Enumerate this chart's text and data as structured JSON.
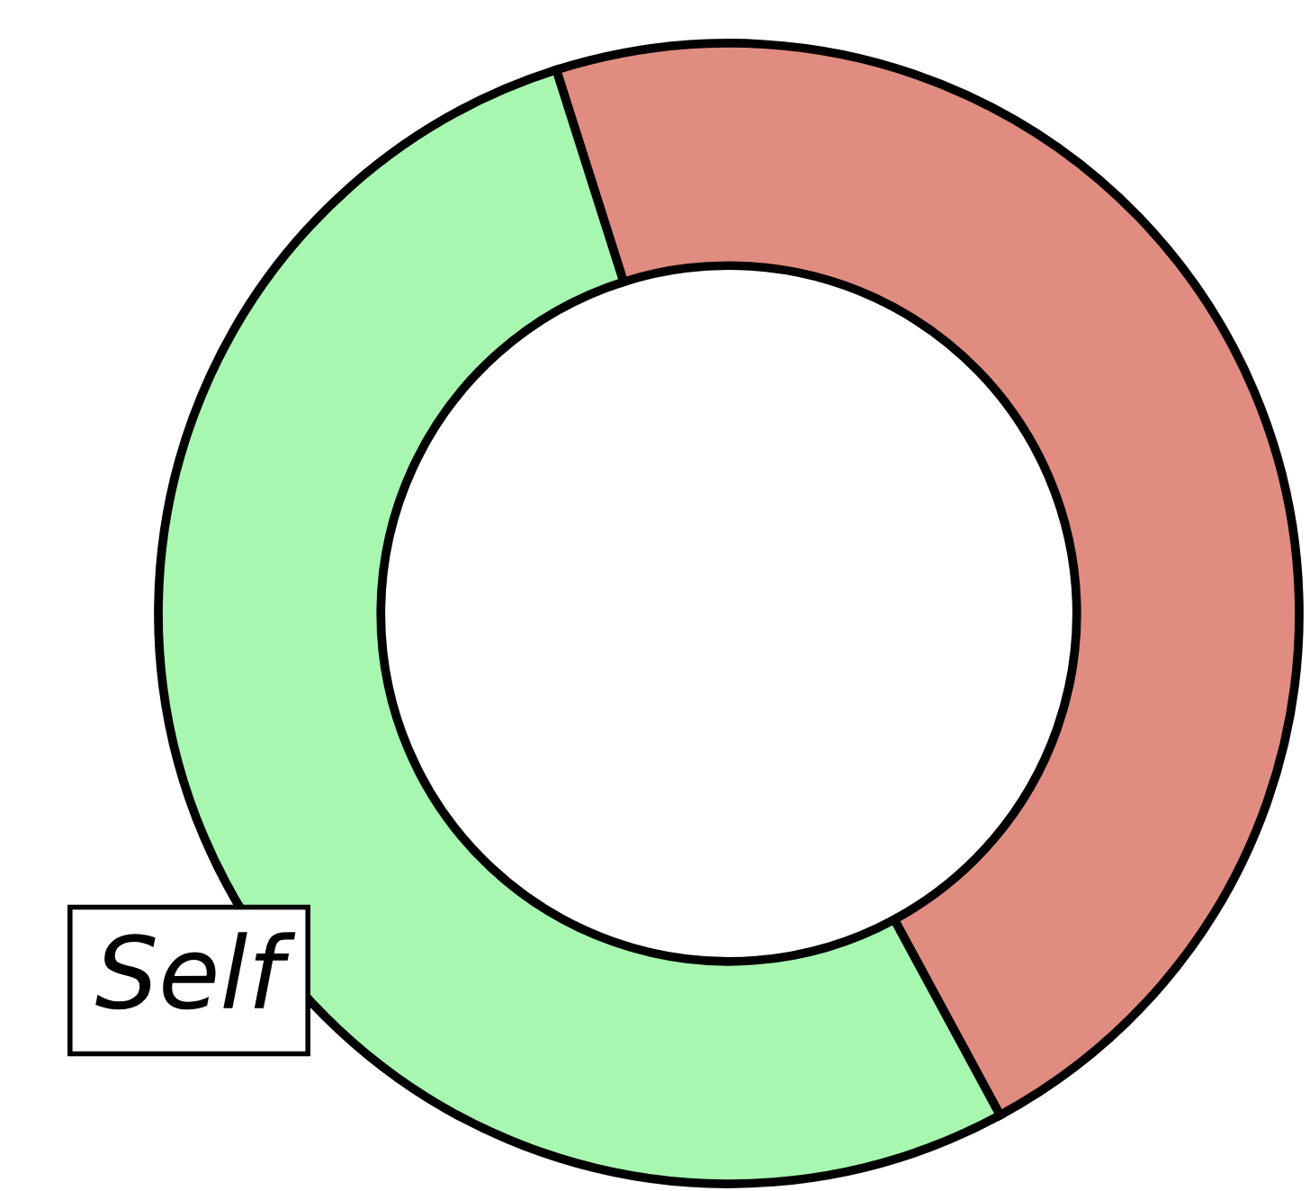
{
  "chart_data": {
    "type": "donut",
    "categories": [
      null,
      null
    ],
    "values": [
      47,
      53
    ],
    "colors": [
      "#e08c80",
      "#a8f7b0"
    ],
    "annotations": [
      "Self"
    ]
  }
}
